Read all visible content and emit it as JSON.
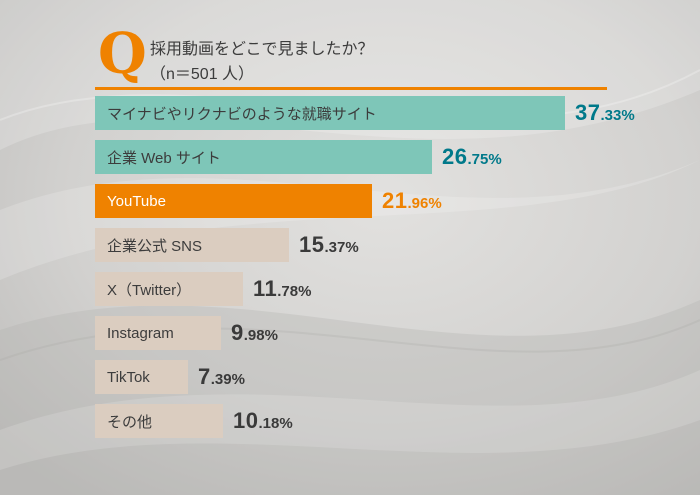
{
  "header": {
    "q_letter": "Q",
    "question_line1": "採用動画をどこで見ましたか？",
    "question_line2": "（n＝501 人）"
  },
  "colors": {
    "accent_orange": "#ef8200",
    "teal_bar": "#7ec6b8",
    "beige_bar": "#dbcdc0",
    "teal_value_text": "#00798a",
    "dark_text": "#3c3c3c",
    "white_text": "#ffffff"
  },
  "chart_data": {
    "type": "bar",
    "orientation": "horizontal",
    "title": "採用動画をどこで見ましたか？",
    "subtitle": "（n＝501 人）",
    "xlim": [
      0,
      40
    ],
    "grid": false,
    "legend": "none",
    "categories": [
      "マイナビやリクナビのような就職サイト",
      "企業 Web サイト",
      "YouTube",
      "企業公式 SNS",
      "X（Twitter）",
      "Instagram",
      "TikTok",
      "その他"
    ],
    "values": [
      37.33,
      26.75,
      21.96,
      15.37,
      11.78,
      9.98,
      7.39,
      10.18
    ],
    "value_labels": [
      "37.33%",
      "26.75%",
      "21.96%",
      "15.37%",
      "11.78%",
      "9.98%",
      "7.39%",
      "10.18%"
    ],
    "bar_colors": [
      "#7ec6b8",
      "#7ec6b8",
      "#ef8200",
      "#dbcdc0",
      "#dbcdc0",
      "#dbcdc0",
      "#dbcdc0",
      "#dbcdc0"
    ],
    "category_text_colors": [
      "#3c3c3c",
      "#3c3c3c",
      "#ffffff",
      "#3c3c3c",
      "#3c3c3c",
      "#3c3c3c",
      "#3c3c3c",
      "#3c3c3c"
    ],
    "value_text_colors": [
      "#00798a",
      "#00798a",
      "#ef8200",
      "#3a3a3a",
      "#3a3a3a",
      "#3a3a3a",
      "#3a3a3a",
      "#3a3a3a"
    ]
  }
}
